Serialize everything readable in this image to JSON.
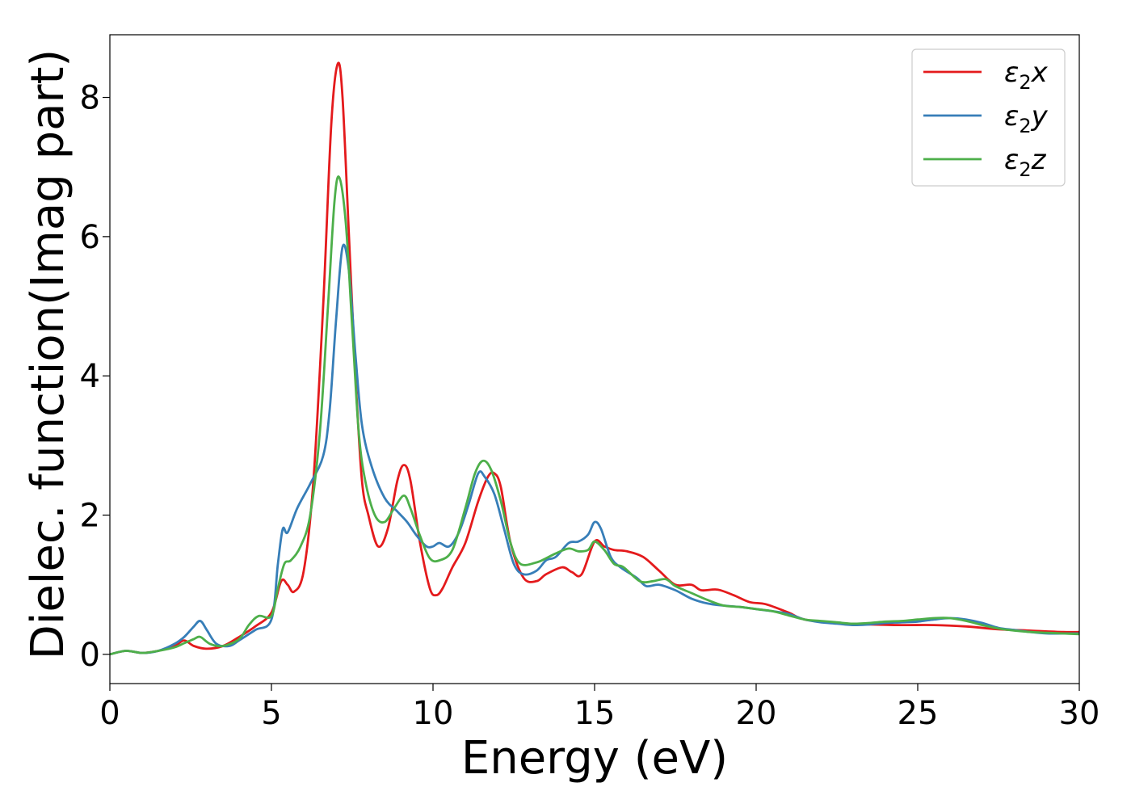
{
  "chart_data": {
    "type": "line",
    "xlabel": "Energy (eV)",
    "ylabel": "Dielec. function(Imag part)",
    "xlim": [
      0,
      30
    ],
    "ylim": [
      -0.42,
      8.9
    ],
    "xticks": [
      0,
      5,
      10,
      15,
      20,
      25,
      30
    ],
    "yticks": [
      0,
      2,
      4,
      6,
      8
    ],
    "legend_position": "top-right",
    "grid": false,
    "series": [
      {
        "name": "ε₂x",
        "legend_main": "ε",
        "legend_sub": "2",
        "legend_suffix": "x",
        "color": "#e41a1c",
        "points": [
          [
            0,
            0
          ],
          [
            0.5,
            0.05
          ],
          [
            1,
            0.02
          ],
          [
            1.5,
            0.05
          ],
          [
            2,
            0.12
          ],
          [
            2.3,
            0.2
          ],
          [
            2.6,
            0.12
          ],
          [
            3,
            0.08
          ],
          [
            3.5,
            0.12
          ],
          [
            4,
            0.25
          ],
          [
            4.5,
            0.4
          ],
          [
            5,
            0.6
          ],
          [
            5.3,
            1.05
          ],
          [
            5.5,
            1.0
          ],
          [
            5.7,
            0.9
          ],
          [
            6,
            1.2
          ],
          [
            6.3,
            2.5
          ],
          [
            6.6,
            5.0
          ],
          [
            6.85,
            7.6
          ],
          [
            7.05,
            8.48
          ],
          [
            7.2,
            8.0
          ],
          [
            7.4,
            6.0
          ],
          [
            7.6,
            4.0
          ],
          [
            7.8,
            2.5
          ],
          [
            8,
            2.0
          ],
          [
            8.3,
            1.55
          ],
          [
            8.6,
            1.8
          ],
          [
            8.9,
            2.5
          ],
          [
            9.1,
            2.72
          ],
          [
            9.3,
            2.5
          ],
          [
            9.6,
            1.6
          ],
          [
            9.9,
            0.95
          ],
          [
            10.1,
            0.85
          ],
          [
            10.3,
            0.95
          ],
          [
            10.6,
            1.25
          ],
          [
            11,
            1.6
          ],
          [
            11.4,
            2.2
          ],
          [
            11.7,
            2.55
          ],
          [
            11.9,
            2.6
          ],
          [
            12.1,
            2.4
          ],
          [
            12.4,
            1.6
          ],
          [
            12.8,
            1.1
          ],
          [
            13.2,
            1.05
          ],
          [
            13.5,
            1.15
          ],
          [
            14,
            1.25
          ],
          [
            14.3,
            1.18
          ],
          [
            14.6,
            1.15
          ],
          [
            15,
            1.62
          ],
          [
            15.3,
            1.55
          ],
          [
            15.6,
            1.5
          ],
          [
            16,
            1.48
          ],
          [
            16.5,
            1.4
          ],
          [
            17,
            1.2
          ],
          [
            17.5,
            1.0
          ],
          [
            18,
            1.0
          ],
          [
            18.3,
            0.92
          ],
          [
            18.8,
            0.93
          ],
          [
            19.3,
            0.85
          ],
          [
            19.8,
            0.75
          ],
          [
            20.3,
            0.72
          ],
          [
            21,
            0.6
          ],
          [
            21.5,
            0.5
          ],
          [
            22.5,
            0.45
          ],
          [
            23.5,
            0.43
          ],
          [
            24.5,
            0.42
          ],
          [
            25.5,
            0.42
          ],
          [
            26.5,
            0.4
          ],
          [
            27.5,
            0.36
          ],
          [
            28.5,
            0.34
          ],
          [
            29.5,
            0.32
          ],
          [
            30,
            0.32
          ]
        ]
      },
      {
        "name": "ε₂y",
        "legend_main": "ε",
        "legend_sub": "2",
        "legend_suffix": "y",
        "color": "#377eb8",
        "points": [
          [
            0,
            0
          ],
          [
            0.5,
            0.05
          ],
          [
            1,
            0.02
          ],
          [
            1.5,
            0.05
          ],
          [
            2,
            0.15
          ],
          [
            2.3,
            0.25
          ],
          [
            2.6,
            0.4
          ],
          [
            2.8,
            0.48
          ],
          [
            3,
            0.35
          ],
          [
            3.3,
            0.15
          ],
          [
            3.7,
            0.12
          ],
          [
            4,
            0.2
          ],
          [
            4.5,
            0.35
          ],
          [
            5,
            0.5
          ],
          [
            5.2,
            1.3
          ],
          [
            5.35,
            1.8
          ],
          [
            5.5,
            1.75
          ],
          [
            5.8,
            2.1
          ],
          [
            6.2,
            2.45
          ],
          [
            6.6,
            2.85
          ],
          [
            6.8,
            3.5
          ],
          [
            7,
            4.8
          ],
          [
            7.2,
            5.85
          ],
          [
            7.4,
            5.5
          ],
          [
            7.6,
            4.3
          ],
          [
            7.8,
            3.3
          ],
          [
            8.1,
            2.7
          ],
          [
            8.5,
            2.25
          ],
          [
            8.9,
            2.05
          ],
          [
            9.2,
            1.9
          ],
          [
            9.5,
            1.7
          ],
          [
            9.8,
            1.55
          ],
          [
            10,
            1.55
          ],
          [
            10.2,
            1.6
          ],
          [
            10.5,
            1.55
          ],
          [
            10.8,
            1.75
          ],
          [
            11.1,
            2.15
          ],
          [
            11.4,
            2.6
          ],
          [
            11.6,
            2.55
          ],
          [
            11.9,
            2.3
          ],
          [
            12.2,
            1.8
          ],
          [
            12.5,
            1.3
          ],
          [
            12.8,
            1.15
          ],
          [
            13.2,
            1.2
          ],
          [
            13.5,
            1.35
          ],
          [
            13.8,
            1.4
          ],
          [
            14.2,
            1.6
          ],
          [
            14.5,
            1.62
          ],
          [
            14.8,
            1.72
          ],
          [
            15,
            1.9
          ],
          [
            15.2,
            1.8
          ],
          [
            15.5,
            1.4
          ],
          [
            15.8,
            1.25
          ],
          [
            16.3,
            1.1
          ],
          [
            16.6,
            0.98
          ],
          [
            17,
            1.0
          ],
          [
            17.5,
            0.92
          ],
          [
            18,
            0.8
          ],
          [
            18.5,
            0.73
          ],
          [
            19,
            0.7
          ],
          [
            19.5,
            0.68
          ],
          [
            20,
            0.65
          ],
          [
            20.5,
            0.62
          ],
          [
            21,
            0.58
          ],
          [
            21.5,
            0.5
          ],
          [
            22,
            0.46
          ],
          [
            22.5,
            0.44
          ],
          [
            23,
            0.42
          ],
          [
            23.5,
            0.43
          ],
          [
            24,
            0.45
          ],
          [
            24.5,
            0.46
          ],
          [
            25,
            0.47
          ],
          [
            25.5,
            0.5
          ],
          [
            26,
            0.52
          ],
          [
            26.5,
            0.5
          ],
          [
            27,
            0.45
          ],
          [
            27.5,
            0.38
          ],
          [
            28,
            0.35
          ],
          [
            28.5,
            0.32
          ],
          [
            29,
            0.3
          ],
          [
            29.5,
            0.3
          ],
          [
            30,
            0.3
          ]
        ]
      },
      {
        "name": "ε₂z",
        "legend_main": "ε",
        "legend_sub": "2",
        "legend_suffix": "z",
        "color": "#4daf4a",
        "points": [
          [
            0,
            0
          ],
          [
            0.5,
            0.05
          ],
          [
            1,
            0.02
          ],
          [
            1.5,
            0.05
          ],
          [
            2,
            0.1
          ],
          [
            2.3,
            0.16
          ],
          [
            2.6,
            0.22
          ],
          [
            2.8,
            0.25
          ],
          [
            3.1,
            0.15
          ],
          [
            3.5,
            0.12
          ],
          [
            4,
            0.22
          ],
          [
            4.3,
            0.42
          ],
          [
            4.6,
            0.55
          ],
          [
            5,
            0.55
          ],
          [
            5.2,
            0.95
          ],
          [
            5.4,
            1.3
          ],
          [
            5.6,
            1.35
          ],
          [
            5.9,
            1.55
          ],
          [
            6.2,
            2.0
          ],
          [
            6.5,
            3.2
          ],
          [
            6.75,
            5.0
          ],
          [
            6.95,
            6.5
          ],
          [
            7.1,
            6.85
          ],
          [
            7.3,
            6.2
          ],
          [
            7.5,
            4.7
          ],
          [
            7.7,
            3.2
          ],
          [
            7.9,
            2.5
          ],
          [
            8.2,
            2.0
          ],
          [
            8.5,
            1.9
          ],
          [
            8.8,
            2.1
          ],
          [
            9.1,
            2.28
          ],
          [
            9.3,
            2.1
          ],
          [
            9.6,
            1.7
          ],
          [
            9.9,
            1.38
          ],
          [
            10.2,
            1.35
          ],
          [
            10.6,
            1.5
          ],
          [
            11,
            2.1
          ],
          [
            11.3,
            2.6
          ],
          [
            11.55,
            2.78
          ],
          [
            11.8,
            2.65
          ],
          [
            12.1,
            2.2
          ],
          [
            12.4,
            1.6
          ],
          [
            12.7,
            1.3
          ],
          [
            13.2,
            1.32
          ],
          [
            13.5,
            1.38
          ],
          [
            13.8,
            1.45
          ],
          [
            14.2,
            1.52
          ],
          [
            14.5,
            1.48
          ],
          [
            14.8,
            1.5
          ],
          [
            15,
            1.62
          ],
          [
            15.3,
            1.5
          ],
          [
            15.6,
            1.3
          ],
          [
            15.9,
            1.25
          ],
          [
            16.4,
            1.05
          ],
          [
            16.8,
            1.05
          ],
          [
            17.2,
            1.08
          ],
          [
            17.5,
            0.98
          ],
          [
            18,
            0.88
          ],
          [
            18.5,
            0.78
          ],
          [
            19,
            0.7
          ],
          [
            19.5,
            0.68
          ],
          [
            20,
            0.65
          ],
          [
            20.5,
            0.62
          ],
          [
            21,
            0.56
          ],
          [
            21.5,
            0.5
          ],
          [
            22,
            0.48
          ],
          [
            22.5,
            0.46
          ],
          [
            23,
            0.44
          ],
          [
            23.5,
            0.45
          ],
          [
            24,
            0.47
          ],
          [
            24.5,
            0.48
          ],
          [
            25,
            0.5
          ],
          [
            25.5,
            0.52
          ],
          [
            26,
            0.52
          ],
          [
            26.5,
            0.48
          ],
          [
            27,
            0.42
          ],
          [
            27.5,
            0.37
          ],
          [
            28,
            0.34
          ],
          [
            28.5,
            0.32
          ],
          [
            29,
            0.31
          ],
          [
            29.5,
            0.3
          ],
          [
            30,
            0.29
          ]
        ]
      }
    ]
  }
}
